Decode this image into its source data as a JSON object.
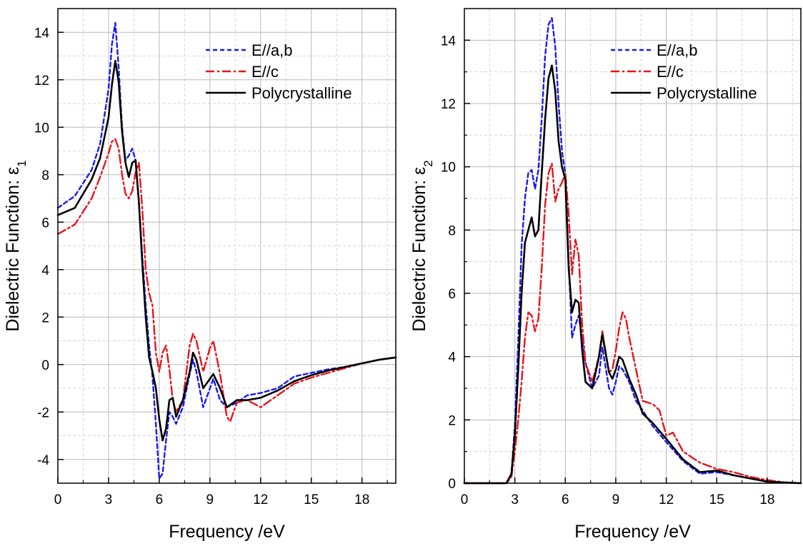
{
  "chart_data": [
    {
      "type": "line",
      "xlabel": "Frequency /eV",
      "ylabel": "Dielectric Function: ε",
      "ylabel_sub": "1",
      "xlim": [
        0,
        20
      ],
      "ylim": [
        -5,
        15
      ],
      "xticks": [
        "0",
        "3",
        "6",
        "9",
        "12",
        "15",
        "18"
      ],
      "yticks": [
        "-4",
        "-2",
        "0",
        "2",
        "4",
        "6",
        "8",
        "10",
        "12",
        "14"
      ],
      "grid": true,
      "legend_position": "top-right",
      "series": [
        {
          "name": "E//a,b",
          "color": "#1a1aee",
          "style": "dashed",
          "x": [
            0,
            1,
            2,
            2.5,
            3,
            3.2,
            3.4,
            3.6,
            3.8,
            4.0,
            4.2,
            4.4,
            4.6,
            4.8,
            5.0,
            5.2,
            5.4,
            5.6,
            5.8,
            6.0,
            6.2,
            6.4,
            6.6,
            6.8,
            7.0,
            7.4,
            7.8,
            8.0,
            8.2,
            8.6,
            9.0,
            9.2,
            9.6,
            10.0,
            10.6,
            11.2,
            12,
            13,
            14,
            15,
            16,
            17,
            18,
            19,
            20
          ],
          "y": [
            6.6,
            7.1,
            8.2,
            9.3,
            11.6,
            13.5,
            14.4,
            12.5,
            10.0,
            8.6,
            8.8,
            9.1,
            8.6,
            6.8,
            4.5,
            2.5,
            0.8,
            -0.5,
            -2.5,
            -4.8,
            -4.6,
            -3.2,
            -2.0,
            -2.2,
            -2.5,
            -1.8,
            -0.4,
            0.2,
            -0.3,
            -1.8,
            -1.0,
            -0.6,
            -1.5,
            -1.8,
            -1.6,
            -1.3,
            -1.2,
            -1.0,
            -0.5,
            -0.35,
            -0.2,
            -0.1,
            0.05,
            0.2,
            0.3
          ]
        },
        {
          "name": "E//c",
          "color": "#e8141a",
          "style": "dashdot",
          "x": [
            0,
            1,
            2,
            2.5,
            3,
            3.2,
            3.4,
            3.6,
            3.8,
            4.0,
            4.2,
            4.4,
            4.6,
            4.8,
            5.0,
            5.2,
            5.4,
            5.6,
            5.8,
            6.0,
            6.2,
            6.4,
            6.6,
            6.8,
            7.0,
            7.4,
            7.8,
            8.0,
            8.2,
            8.6,
            9.0,
            9.2,
            9.6,
            10.0,
            10.2,
            10.6,
            11.2,
            12,
            13,
            14,
            15,
            16,
            17,
            18,
            19,
            20
          ],
          "y": [
            5.5,
            5.9,
            7.0,
            7.9,
            8.9,
            9.4,
            9.5,
            9.1,
            8.0,
            7.2,
            7.0,
            7.3,
            8.1,
            8.5,
            6.5,
            4.0,
            3.0,
            2.5,
            0.5,
            -0.3,
            0.5,
            0.8,
            -0.2,
            -1.5,
            -2.0,
            -1.5,
            0.8,
            1.3,
            1.0,
            -0.3,
            0.7,
            1.0,
            -0.4,
            -2.2,
            -2.4,
            -1.6,
            -1.5,
            -1.8,
            -1.3,
            -0.8,
            -0.55,
            -0.35,
            -0.15,
            0.05,
            0.2,
            0.3
          ]
        },
        {
          "name": "Polycrystalline",
          "color": "#000000",
          "style": "solid",
          "x": [
            0,
            1,
            2,
            2.5,
            3,
            3.2,
            3.4,
            3.6,
            3.8,
            4.0,
            4.2,
            4.4,
            4.6,
            4.8,
            5.0,
            5.2,
            5.4,
            5.6,
            5.8,
            6.0,
            6.2,
            6.4,
            6.6,
            6.8,
            7.0,
            7.4,
            7.8,
            8.0,
            8.2,
            8.6,
            9.0,
            9.2,
            9.6,
            10.0,
            10.6,
            11.2,
            12,
            13,
            14,
            15,
            16,
            17,
            18,
            19,
            20
          ],
          "y": [
            6.3,
            6.6,
            7.8,
            8.7,
            10.4,
            11.8,
            12.8,
            11.9,
            9.8,
            8.5,
            7.9,
            8.5,
            8.6,
            6.8,
            4.2,
            2.0,
            0.3,
            -0.3,
            -1.0,
            -2.3,
            -3.2,
            -2.7,
            -1.5,
            -1.4,
            -2.2,
            -1.5,
            -0.3,
            0.5,
            0.2,
            -1.0,
            -0.6,
            -0.4,
            -1.0,
            -1.8,
            -1.5,
            -1.5,
            -1.4,
            -1.1,
            -0.7,
            -0.45,
            -0.25,
            -0.1,
            0.05,
            0.2,
            0.3
          ]
        }
      ]
    },
    {
      "type": "line",
      "xlabel": "Frequency /eV",
      "ylabel": "Dielectric Function: ε",
      "ylabel_sub": "2",
      "xlim": [
        0,
        20
      ],
      "ylim": [
        0,
        15
      ],
      "xticks": [
        "0",
        "3",
        "6",
        "9",
        "12",
        "15",
        "18"
      ],
      "yticks": [
        "0",
        "2",
        "4",
        "6",
        "8",
        "10",
        "12",
        "14"
      ],
      "grid": true,
      "legend_position": "top-right",
      "series": [
        {
          "name": "E//a,b",
          "color": "#1a1aee",
          "style": "dashed",
          "x": [
            0,
            2.5,
            2.8,
            3.0,
            3.2,
            3.4,
            3.6,
            3.8,
            4.0,
            4.2,
            4.4,
            4.6,
            4.8,
            5.0,
            5.2,
            5.4,
            5.6,
            5.8,
            6.0,
            6.2,
            6.4,
            6.6,
            6.8,
            7.0,
            7.2,
            7.6,
            8.0,
            8.2,
            8.6,
            8.8,
            9.0,
            9.2,
            9.4,
            9.8,
            10.2,
            10.6,
            11.2,
            12,
            13,
            14,
            15,
            16,
            17,
            18,
            19,
            20
          ],
          "y": [
            0,
            0,
            0.3,
            1.8,
            4.5,
            7.5,
            9.0,
            9.8,
            9.9,
            9.3,
            9.9,
            11.5,
            13.5,
            14.5,
            14.7,
            13.8,
            12.0,
            10.5,
            9.8,
            7.0,
            4.6,
            5.0,
            5.3,
            4.5,
            3.8,
            3.0,
            3.4,
            4.3,
            3.0,
            2.8,
            3.2,
            3.7,
            3.6,
            3.2,
            2.6,
            2.3,
            1.8,
            1.3,
            0.7,
            0.3,
            0.35,
            0.25,
            0.15,
            0.05,
            0.02,
            0
          ]
        },
        {
          "name": "E//c",
          "color": "#e8141a",
          "style": "dashdot",
          "x": [
            0,
            2.5,
            2.8,
            3.0,
            3.2,
            3.4,
            3.6,
            3.8,
            4.0,
            4.2,
            4.4,
            4.6,
            4.8,
            5.0,
            5.2,
            5.4,
            5.6,
            5.8,
            6.0,
            6.2,
            6.4,
            6.6,
            6.8,
            7.0,
            7.2,
            7.6,
            8.0,
            8.2,
            8.6,
            8.8,
            9.0,
            9.2,
            9.4,
            9.6,
            9.8,
            10.2,
            10.6,
            11.2,
            11.6,
            12,
            12.4,
            13,
            14,
            15,
            16,
            17,
            18,
            19,
            20
          ],
          "y": [
            0,
            0,
            0.2,
            1.0,
            2.0,
            3.2,
            4.6,
            5.4,
            5.3,
            4.8,
            5.2,
            6.8,
            8.8,
            9.8,
            10.1,
            8.9,
            9.3,
            9.5,
            9.8,
            8.5,
            6.6,
            7.7,
            7.2,
            5.0,
            3.8,
            3.2,
            4.0,
            4.8,
            3.5,
            3.6,
            4.2,
            4.9,
            5.4,
            5.2,
            4.6,
            3.6,
            2.6,
            2.5,
            2.3,
            1.5,
            1.6,
            1.0,
            0.65,
            0.45,
            0.35,
            0.2,
            0.1,
            0.03,
            0
          ]
        },
        {
          "name": "Polycrystalline",
          "color": "#000000",
          "style": "solid",
          "x": [
            0,
            2.5,
            2.8,
            3.0,
            3.2,
            3.4,
            3.6,
            3.8,
            4.0,
            4.2,
            4.4,
            4.6,
            4.8,
            5.0,
            5.2,
            5.4,
            5.6,
            5.8,
            6.0,
            6.2,
            6.4,
            6.6,
            6.8,
            7.0,
            7.2,
            7.6,
            8.0,
            8.2,
            8.6,
            8.8,
            9.0,
            9.2,
            9.4,
            9.8,
            10.2,
            10.6,
            11.2,
            12,
            13,
            14,
            15,
            16,
            17,
            18,
            19,
            20
          ],
          "y": [
            0,
            0,
            0.3,
            1.5,
            3.6,
            6.0,
            7.6,
            8.0,
            8.4,
            7.8,
            8.0,
            9.8,
            11.5,
            12.8,
            13.2,
            12.4,
            10.8,
            10.0,
            9.6,
            6.8,
            5.4,
            5.8,
            5.7,
            4.2,
            3.2,
            3.0,
            4.0,
            4.7,
            3.5,
            3.3,
            3.6,
            4.0,
            3.9,
            3.3,
            2.8,
            2.2,
            1.9,
            1.4,
            0.75,
            0.35,
            0.4,
            0.25,
            0.15,
            0.05,
            0.02,
            0
          ]
        }
      ]
    }
  ]
}
